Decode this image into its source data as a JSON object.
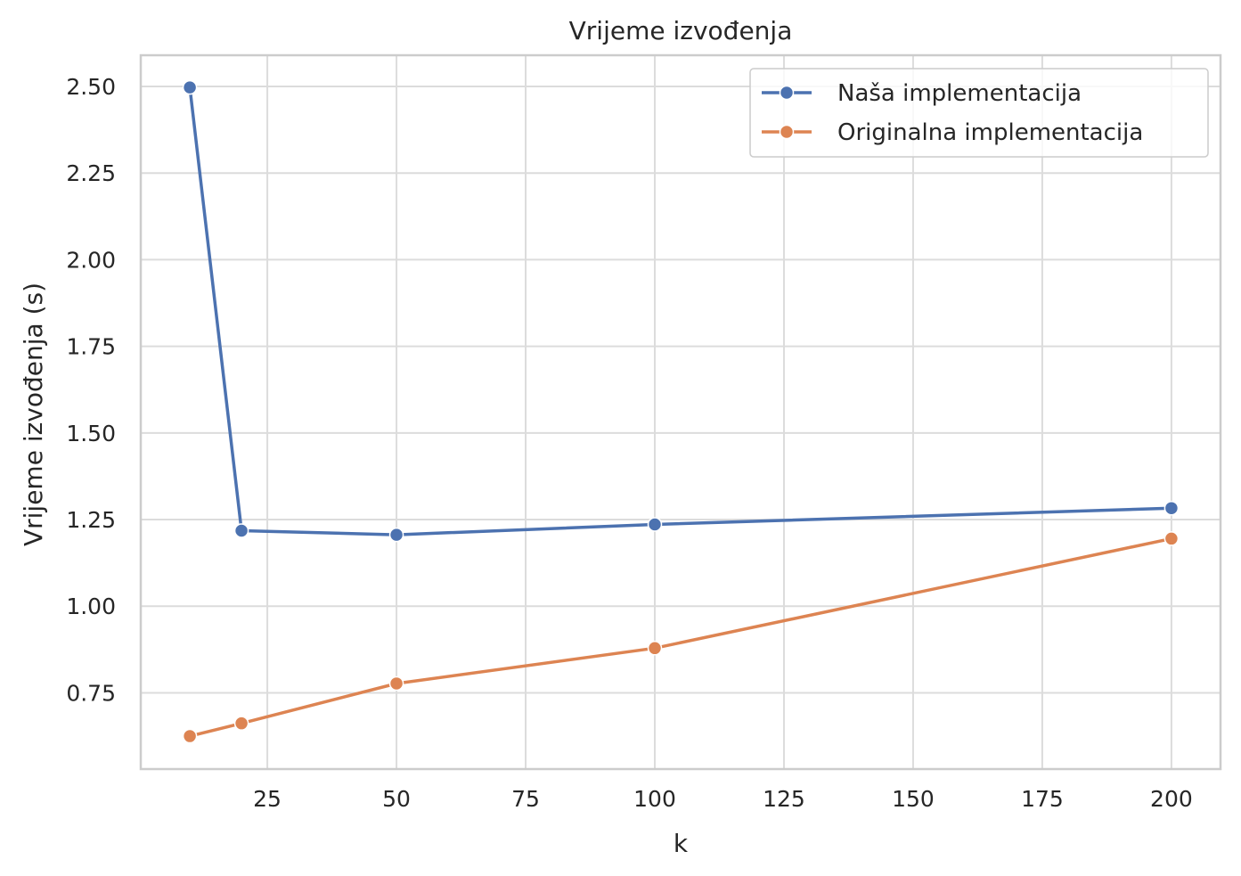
{
  "chart_data": {
    "type": "line",
    "title": "Vrijeme izvođenja",
    "xlabel": "k",
    "ylabel": "Vrijeme izvođenja (s)",
    "x": [
      10,
      20,
      50,
      100,
      200
    ],
    "xlim": [
      0.5,
      209.5
    ],
    "ylim": [
      0.53,
      2.59
    ],
    "xticks": [
      25,
      50,
      75,
      100,
      125,
      150,
      175,
      200
    ],
    "yticks": [
      0.75,
      1.0,
      1.25,
      1.5,
      1.75,
      2.0,
      2.25,
      2.5
    ],
    "xtick_labels": [
      "25",
      "50",
      "75",
      "100",
      "125",
      "150",
      "175",
      "200"
    ],
    "ytick_labels": [
      "0.75",
      "1.00",
      "1.25",
      "1.50",
      "1.75",
      "2.00",
      "2.25",
      "2.50"
    ],
    "grid": true,
    "legend_position": "top-right",
    "series": [
      {
        "name": "Naša implementacija",
        "color": "#4c72b0",
        "values": [
          2.497,
          1.218,
          1.206,
          1.236,
          1.283
        ]
      },
      {
        "name": "Originalna implementacija",
        "color": "#dd8452",
        "values": [
          0.625,
          0.662,
          0.777,
          0.879,
          1.195
        ]
      }
    ]
  }
}
